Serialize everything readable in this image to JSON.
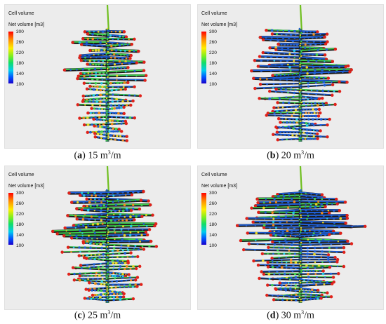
{
  "legend": {
    "title": "Cell volume",
    "subtitle": "Net volume [m3]",
    "ticks": [
      "300",
      "260",
      "220",
      "180",
      "140",
      "100"
    ],
    "gradient_colors": [
      "#ff0000",
      "#ff8800",
      "#ffee00",
      "#77ee22",
      "#11dd66",
      "#00ccee",
      "#0055ff",
      "#1a00cc"
    ]
  },
  "panels": [
    {
      "letter": "a",
      "value": "15 m",
      "exp": "3",
      "unit": "/m"
    },
    {
      "letter": "b",
      "value": "20 m",
      "exp": "3",
      "unit": "/m"
    },
    {
      "letter": "c",
      "value": "25 m",
      "exp": "3",
      "unit": "/m"
    },
    {
      "letter": "d",
      "value": "30 m",
      "exp": "3",
      "unit": "/m"
    }
  ],
  "colors": {
    "panel_background": "#ececec",
    "stem": "#6fbf1f",
    "branch_dark": "#1a1a1a",
    "tip": "#e0221a",
    "node_blue": "#1f5fd6",
    "node_green": "#3fd04f",
    "node_yellow": "#e6d420"
  }
}
